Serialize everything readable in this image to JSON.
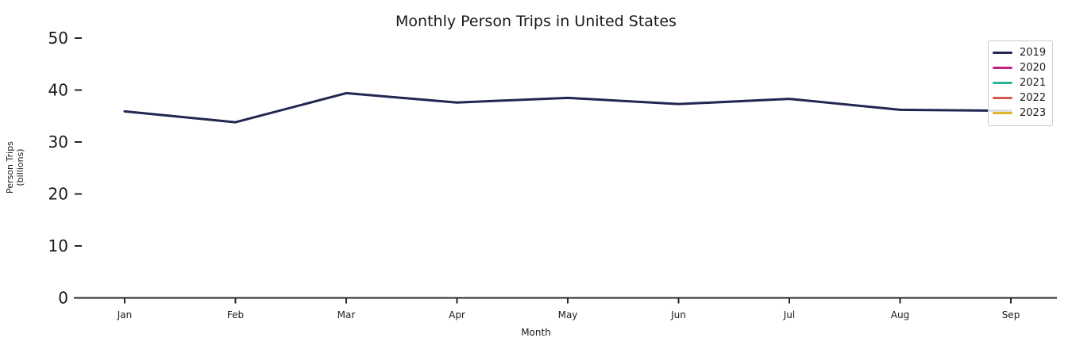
{
  "chart_data": {
    "type": "line",
    "title": "Monthly Person Trips in United States",
    "xlabel": "Month",
    "ylabel_lines": [
      "Person Trips",
      "(billions)"
    ],
    "categories": [
      "Jan",
      "Feb",
      "Mar",
      "Apr",
      "May",
      "Jun",
      "Jul",
      "Aug",
      "Sep"
    ],
    "yticks": [
      0,
      10,
      20,
      30,
      40,
      50
    ],
    "ylim": [
      0,
      52.5
    ],
    "grid": false,
    "legend_position": "upper right",
    "series": [
      {
        "name": "2019",
        "color": "#232553",
        "values": [
          35.9,
          33.8,
          39.4,
          37.6,
          38.5,
          37.3,
          38.3,
          36.2,
          36.0
        ]
      },
      {
        "name": "2020",
        "color": "#c02383",
        "values": []
      },
      {
        "name": "2021",
        "color": "#28b696",
        "values": []
      },
      {
        "name": "2022",
        "color": "#d8574e",
        "values": []
      },
      {
        "name": "2023",
        "color": "#e0b62e",
        "values": []
      }
    ],
    "axis_color": "#262626",
    "text_color": "#1a1a1a"
  }
}
